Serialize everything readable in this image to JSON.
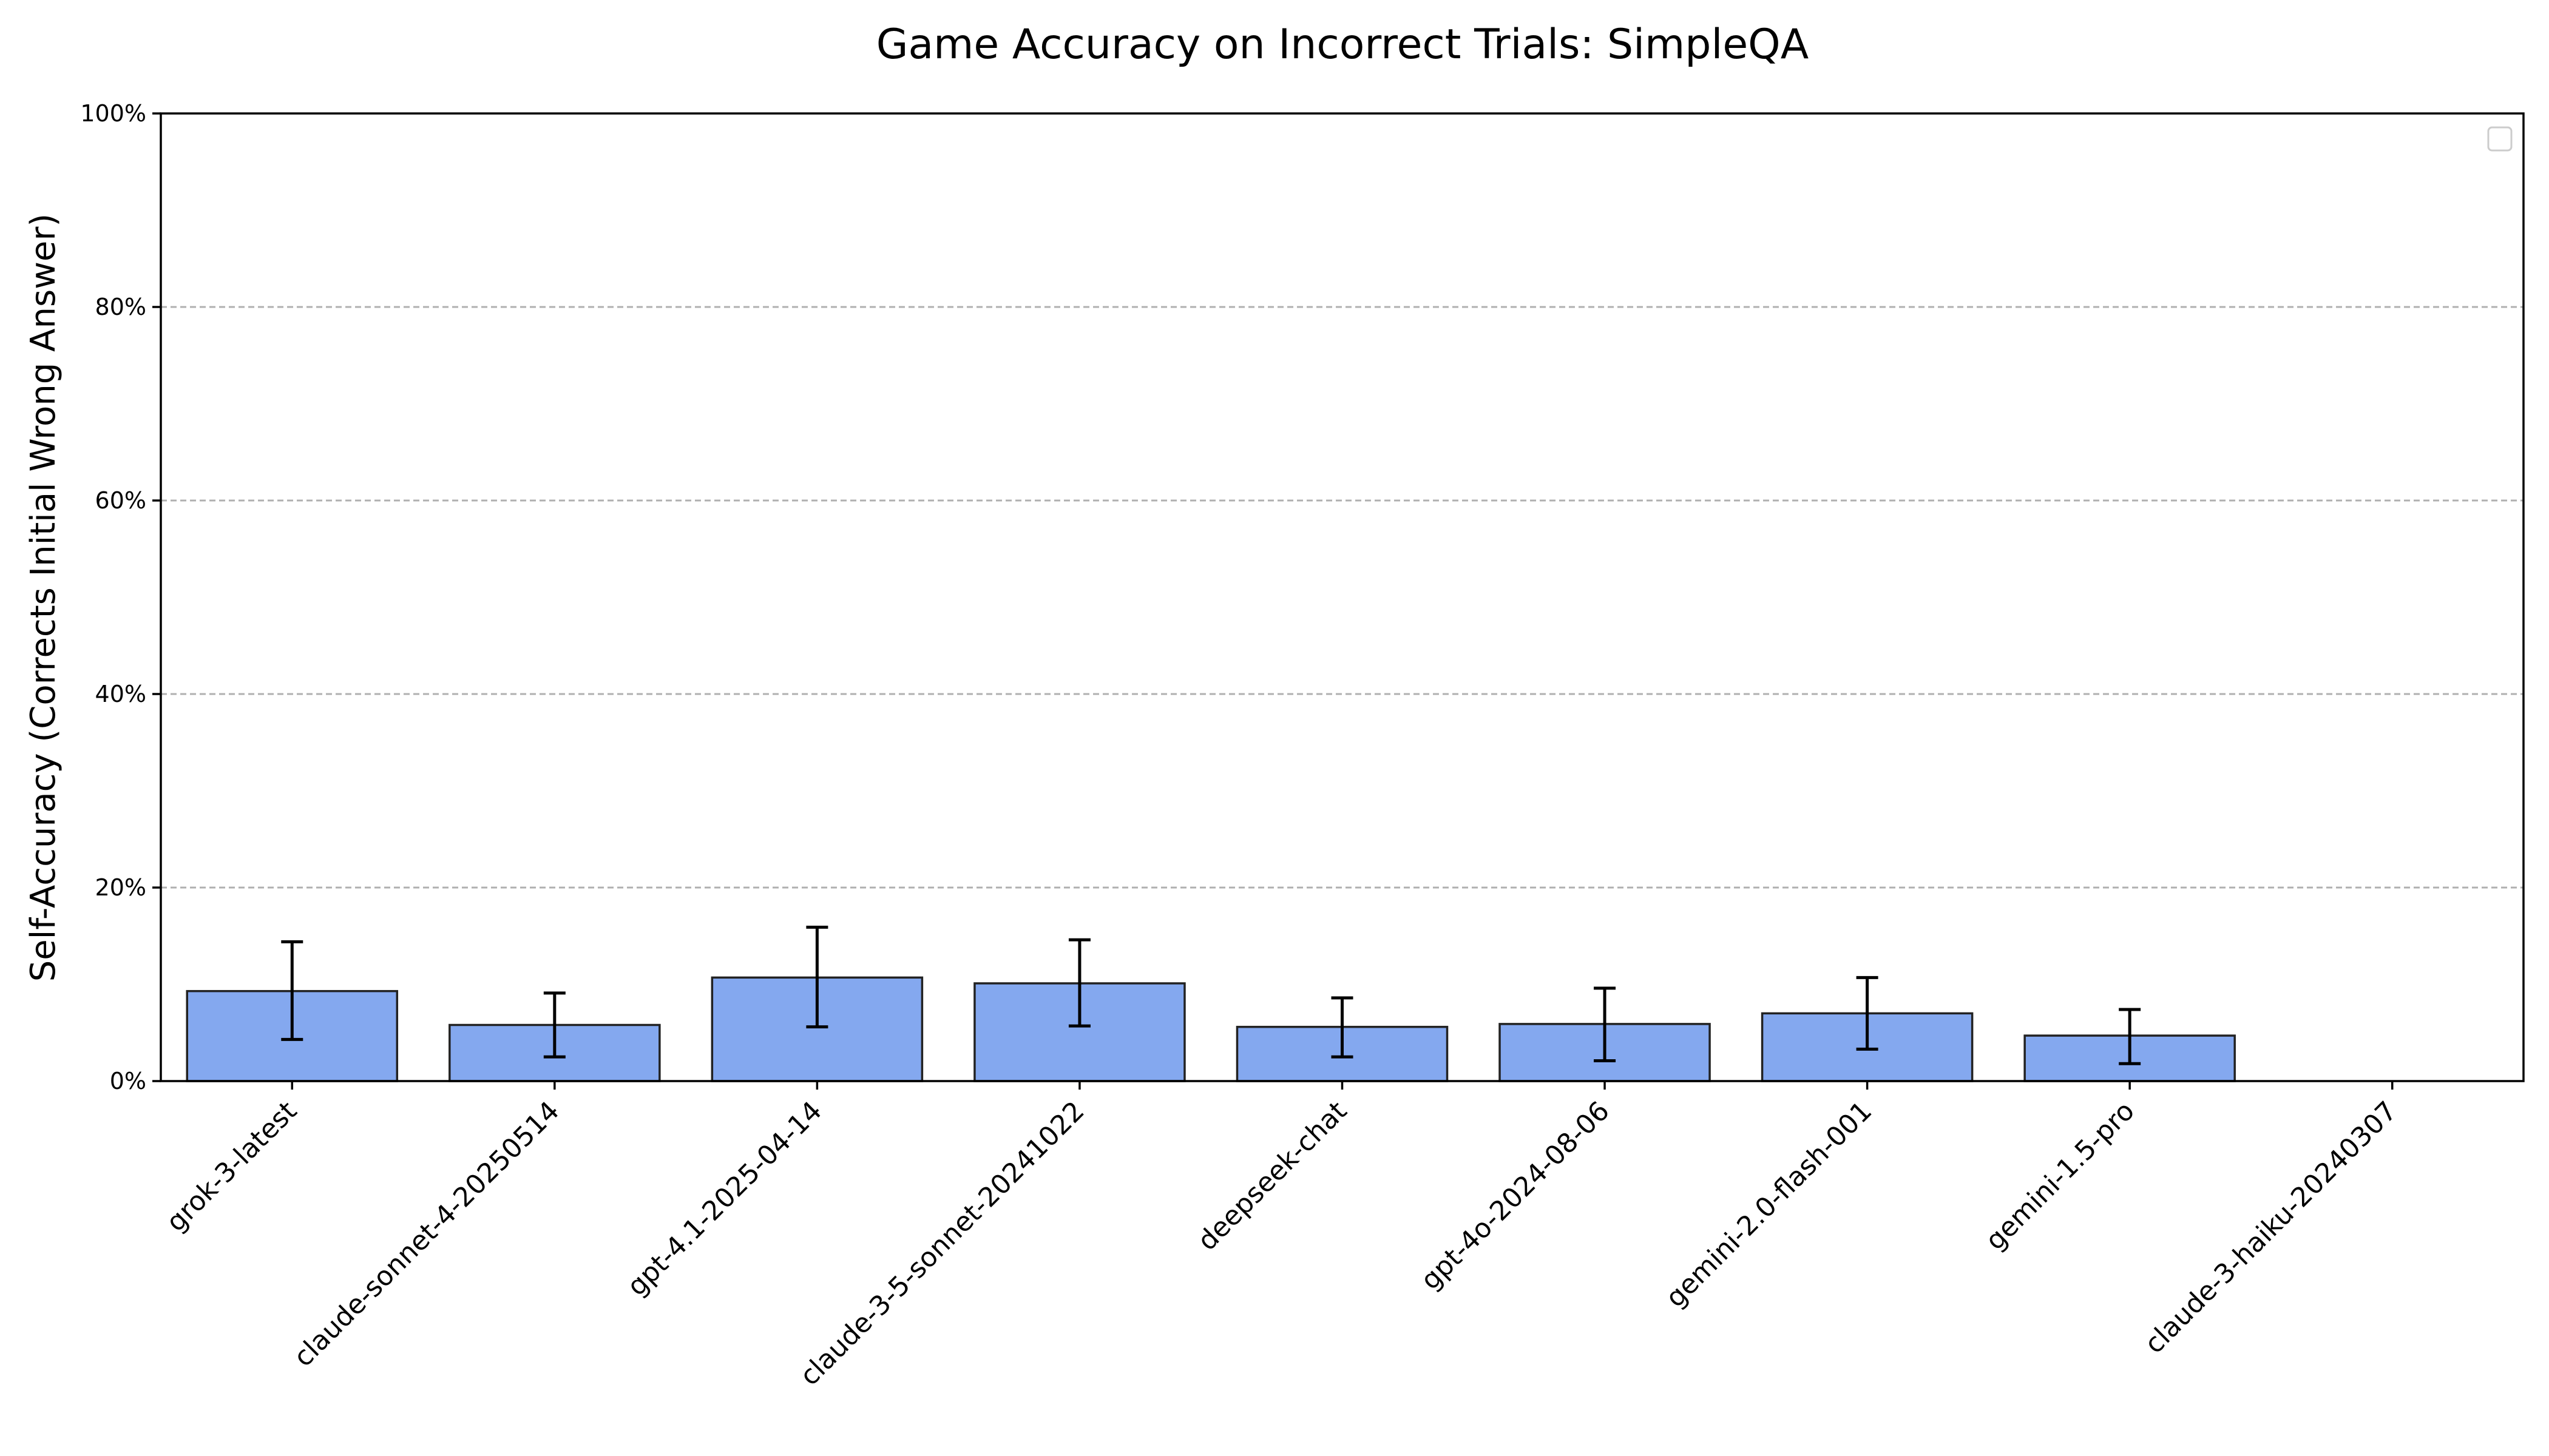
{
  "chart_data": {
    "type": "bar",
    "title": "Game Accuracy on Incorrect Trials: SimpleQA",
    "xlabel": "",
    "ylabel": "Self-Accuracy (Corrects Initial Wrong Answer)",
    "ylim": [
      0,
      100
    ],
    "yticks": [
      0,
      20,
      40,
      60,
      80,
      100
    ],
    "ytick_labels": [
      "0%",
      "20%",
      "40%",
      "60%",
      "80%",
      "100%"
    ],
    "grid": "y-dashed",
    "legend": "top-right (empty)",
    "bar_color": "#84a8ef",
    "categories": [
      "grok-3-latest",
      "claude-sonnet-4-20250514",
      "gpt-4.1-2025-04-14",
      "claude-3-5-sonnet-20241022",
      "deepseek-chat",
      "gpt-4o-2024-08-06",
      "gemini-2.0-flash-001",
      "gemini-1.5-pro",
      "claude-3-haiku-20240307"
    ],
    "values": [
      9.3,
      5.8,
      10.7,
      10.1,
      5.6,
      5.9,
      7.0,
      4.7,
      0.0
    ],
    "error_low": [
      4.3,
      2.5,
      5.6,
      5.7,
      2.5,
      2.1,
      3.3,
      1.8,
      0.0
    ],
    "error_high": [
      14.4,
      9.1,
      15.9,
      14.6,
      8.6,
      9.6,
      10.7,
      7.4,
      0.0
    ]
  }
}
